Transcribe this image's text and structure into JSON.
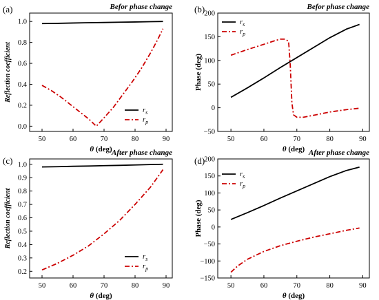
{
  "colors": {
    "rs": "#000000",
    "rp": "#cc0000"
  },
  "chart_data": [
    {
      "type": "line",
      "panel_label": "(a)",
      "title": "Befor phase change",
      "xlabel": "θ (deg)",
      "ylabel": "Reflection coefficient",
      "xlim": [
        46,
        92
      ],
      "ylim": [
        -0.05,
        1.08
      ],
      "xticks": [
        50,
        60,
        70,
        80,
        90
      ],
      "yticks": [
        0.0,
        0.2,
        0.4,
        0.6,
        0.8,
        1.0
      ],
      "ytick_labels": [
        "0.0",
        "0.2",
        "0.4",
        "0.6",
        "0.8",
        "1.0"
      ],
      "legend_position": "bottom-right",
      "grid": false,
      "series": [
        {
          "name": "r_s",
          "style": "solid",
          "x": [
            50,
            55,
            60,
            65,
            70,
            75,
            80,
            85,
            89
          ],
          "y": [
            0.98,
            0.982,
            0.985,
            0.988,
            0.99,
            0.993,
            0.995,
            0.998,
            1.0
          ]
        },
        {
          "name": "r_p",
          "style": "dashdot",
          "x": [
            50,
            53,
            56,
            59,
            62,
            65,
            67.5,
            70,
            73,
            76,
            79,
            82,
            85,
            87,
            89
          ],
          "y": [
            0.39,
            0.34,
            0.28,
            0.21,
            0.14,
            0.07,
            0.0,
            0.08,
            0.18,
            0.3,
            0.42,
            0.55,
            0.7,
            0.81,
            0.93
          ]
        }
      ]
    },
    {
      "type": "line",
      "panel_label": "(b)",
      "title": "Befor phase change",
      "xlabel": "θ (deg)",
      "ylabel": "Phase (deg)",
      "xlim": [
        46,
        92
      ],
      "ylim": [
        -50,
        200
      ],
      "xticks": [
        50,
        60,
        70,
        80,
        90
      ],
      "yticks": [
        -50,
        0,
        50,
        100,
        150,
        200
      ],
      "ytick_labels": [
        "−50",
        "0",
        "50",
        "100",
        "150",
        "200"
      ],
      "legend_position": "top-left",
      "grid": false,
      "series": [
        {
          "name": "r_s",
          "style": "solid",
          "x": [
            50,
            55,
            60,
            65,
            70,
            75,
            80,
            85,
            89
          ],
          "y": [
            22,
            42,
            63,
            85,
            106,
            127,
            148,
            166,
            176
          ]
        },
        {
          "name": "r_p",
          "style": "dashdot",
          "x": [
            50,
            55,
            60,
            63,
            65,
            66.5,
            67.5,
            68,
            68.5,
            69,
            70,
            72,
            75,
            80,
            85,
            89
          ],
          "y": [
            111,
            123,
            134,
            141,
            145,
            145,
            140,
            90,
            10,
            -15,
            -20,
            -20,
            -16,
            -9,
            -4,
            -1
          ]
        }
      ]
    },
    {
      "type": "line",
      "panel_label": "(c)",
      "title": "After phase change",
      "xlabel": "θ (deg)",
      "ylabel": "Reflection coefficient",
      "xlim": [
        46,
        92
      ],
      "ylim": [
        0.15,
        1.04
      ],
      "xticks": [
        50,
        60,
        70,
        80,
        90
      ],
      "yticks": [
        0.2,
        0.3,
        0.4,
        0.5,
        0.6,
        0.7,
        0.8,
        0.9,
        1.0
      ],
      "ytick_labels": [
        "0.2",
        "0.3",
        "0.4",
        "0.5",
        "0.6",
        "0.7",
        "0.8",
        "0.9",
        "1.0"
      ],
      "legend_position": "bottom-right",
      "grid": false,
      "series": [
        {
          "name": "r_s",
          "style": "solid",
          "x": [
            50,
            55,
            60,
            65,
            70,
            75,
            80,
            85,
            89
          ],
          "y": [
            0.98,
            0.982,
            0.985,
            0.987,
            0.99,
            0.992,
            0.995,
            0.998,
            1.0
          ]
        },
        {
          "name": "r_p",
          "style": "dashdot",
          "x": [
            50,
            55,
            60,
            65,
            70,
            75,
            80,
            85,
            89
          ],
          "y": [
            0.21,
            0.26,
            0.32,
            0.39,
            0.48,
            0.58,
            0.7,
            0.83,
            0.96
          ]
        }
      ]
    },
    {
      "type": "line",
      "panel_label": "(d)",
      "title": "After phase change",
      "xlabel": "θ (deg)",
      "ylabel": "Phase (deg)",
      "xlim": [
        46,
        92
      ],
      "ylim": [
        -150,
        200
      ],
      "xticks": [
        50,
        60,
        70,
        80,
        90
      ],
      "yticks": [
        -150,
        -100,
        -50,
        0,
        50,
        100,
        150,
        200
      ],
      "ytick_labels": [
        "−150",
        "−100",
        "−50",
        "0",
        "50",
        "100",
        "150",
        "200"
      ],
      "legend_position": "top-left",
      "grid": false,
      "series": [
        {
          "name": "r_s",
          "style": "solid",
          "x": [
            50,
            55,
            60,
            65,
            70,
            75,
            80,
            85,
            89
          ],
          "y": [
            22,
            42,
            63,
            85,
            106,
            127,
            148,
            166,
            176
          ]
        },
        {
          "name": "r_p",
          "style": "dashdot",
          "x": [
            50,
            52,
            55,
            60,
            65,
            70,
            75,
            80,
            85,
            89
          ],
          "y": [
            -133,
            -115,
            -95,
            -72,
            -55,
            -42,
            -30,
            -20,
            -10,
            -3
          ]
        }
      ]
    }
  ]
}
